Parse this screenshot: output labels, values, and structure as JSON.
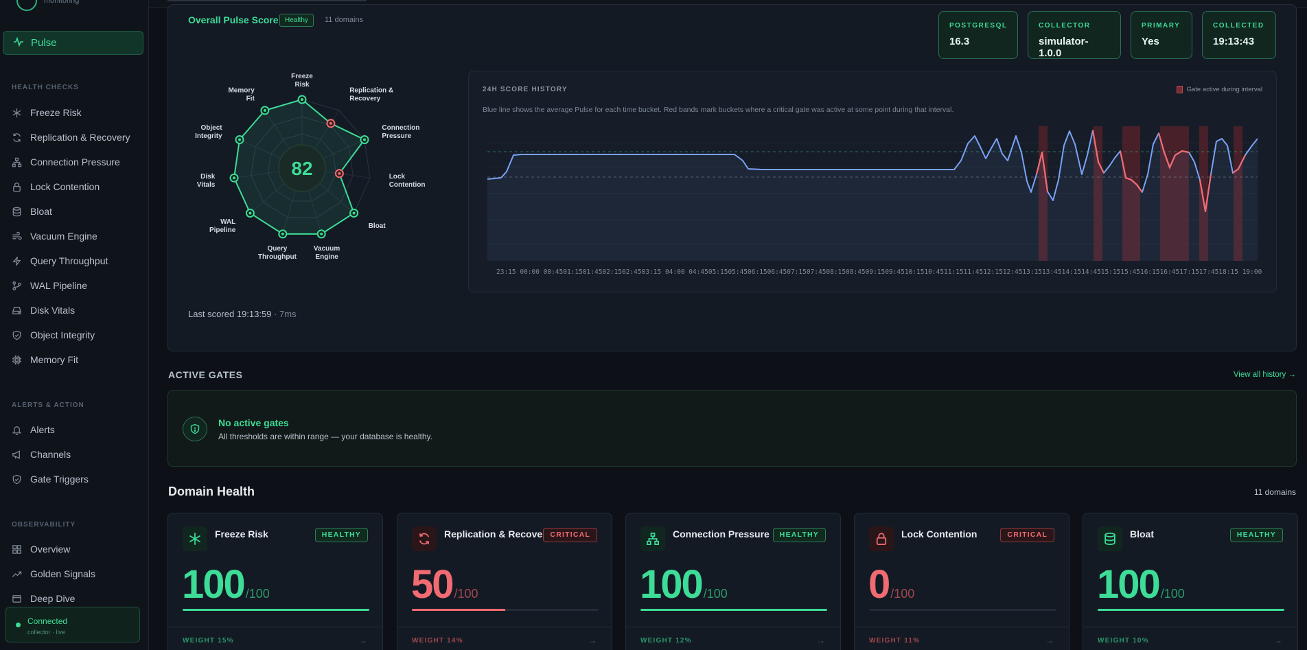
{
  "brand": {
    "subtitle": "monitoring"
  },
  "sidebar": {
    "active": {
      "label": "Pulse",
      "icon": "pulse-icon"
    },
    "sections": [
      {
        "title": "HEALTH CHECKS",
        "items": [
          {
            "label": "Freeze Risk",
            "icon": "snowflake-icon"
          },
          {
            "label": "Replication & Recovery",
            "icon": "refresh-icon"
          },
          {
            "label": "Connection Pressure",
            "icon": "network-icon"
          },
          {
            "label": "Lock Contention",
            "icon": "lock-icon"
          },
          {
            "label": "Bloat",
            "icon": "database-icon"
          },
          {
            "label": "Vacuum Engine",
            "icon": "wind-icon"
          },
          {
            "label": "Query Throughput",
            "icon": "bolt-icon"
          },
          {
            "label": "WAL Pipeline",
            "icon": "branch-icon"
          },
          {
            "label": "Disk Vitals",
            "icon": "disk-icon"
          },
          {
            "label": "Object Integrity",
            "icon": "shield-icon"
          },
          {
            "label": "Memory Fit",
            "icon": "chip-icon"
          }
        ]
      },
      {
        "title": "ALERTS & ACTION",
        "items": [
          {
            "label": "Alerts",
            "icon": "bell-icon"
          },
          {
            "label": "Channels",
            "icon": "megaphone-icon"
          },
          {
            "label": "Gate Triggers",
            "icon": "shield-icon"
          }
        ]
      },
      {
        "title": "OBSERVABILITY",
        "items": [
          {
            "label": "Overview",
            "icon": "grid-icon"
          },
          {
            "label": "Golden Signals",
            "icon": "trend-icon"
          },
          {
            "label": "Deep Dive",
            "icon": "window-icon"
          }
        ]
      }
    ],
    "connection": {
      "title": "Connected",
      "subtitle": "collector · live"
    }
  },
  "pulse": {
    "title": "Overall Pulse Score",
    "status": "Healthy",
    "domains": "11 domains",
    "score": "82",
    "last_scored": "Last scored 19:13:59",
    "duration": "· 7ms",
    "radar_labels": [
      [
        "Freeze",
        "Risk"
      ],
      [
        "Replication &",
        "Recovery"
      ],
      [
        "Connection",
        "Pressure"
      ],
      [
        "Lock",
        "Contention"
      ],
      [
        "Bloat"
      ],
      [
        "Vacuum",
        "Engine"
      ],
      [
        "Query",
        "Throughput"
      ],
      [
        "WAL",
        "Pipeline"
      ],
      [
        "Disk",
        "Vitals"
      ],
      [
        "Object",
        "Integrity"
      ],
      [
        "Memory",
        "Fit"
      ]
    ],
    "radar_values": [
      1.0,
      0.5,
      1.0,
      0.0,
      1.0,
      1.0,
      1.0,
      1.0,
      1.0,
      1.0,
      1.0
    ],
    "radar_critical": [
      false,
      true,
      false,
      true,
      false,
      false,
      false,
      false,
      false,
      false,
      false
    ]
  },
  "meta": [
    {
      "label": "POSTGRESQL",
      "value": "16.3"
    },
    {
      "label": "COLLECTOR",
      "value": "simulator-1.0.0"
    },
    {
      "label": "PRIMARY",
      "value": "Yes"
    },
    {
      "label": "COLLECTED",
      "value": "19:13:43"
    }
  ],
  "history": {
    "title": "24H SCORE HISTORY",
    "description": "Blue line shows the average Pulse for each time bucket. Red bands mark buckets where a critical gate was active at some point during that interval.",
    "legend": "Gate active during interval",
    "ticks": "23:15    00:00    00:4501:1501:4502:1502:4503:15    04:00    04:4505:1505:4506:1506:4507:1507:4508:1508:4509:1509:4510:1510:4511:1511:4512:1512:4513:1513:4514:1514:4515:1515:4516:1516:4517:1517:4518:15    19:00"
  },
  "gates": {
    "heading": "ACTIVE GATES",
    "view_all": "View all history →",
    "title": "No active gates",
    "subtitle": "All thresholds are within range — your database is healthy."
  },
  "domain_health": {
    "heading": "Domain Health",
    "count": "11 domains",
    "cards": [
      {
        "name": "Freeze Risk",
        "status": "HEALTHY",
        "score": "100",
        "denom": "/100",
        "weight": "WEIGHT 15%",
        "fraction": 1.0,
        "critical": false,
        "icon": "snowflake-icon"
      },
      {
        "name": "Replication & Recovery",
        "status": "CRITICAL",
        "score": "50",
        "denom": "/100",
        "weight": "WEIGHT 14%",
        "fraction": 0.5,
        "critical": true,
        "icon": "refresh-icon"
      },
      {
        "name": "Connection Pressure",
        "status": "HEALTHY",
        "score": "100",
        "denom": "/100",
        "weight": "WEIGHT 12%",
        "fraction": 1.0,
        "critical": false,
        "icon": "network-icon"
      },
      {
        "name": "Lock Contention",
        "status": "CRITICAL",
        "score": "0",
        "denom": "/100",
        "weight": "WEIGHT 11%",
        "fraction": 0.0,
        "critical": true,
        "icon": "lock-icon"
      },
      {
        "name": "Bloat",
        "status": "HEALTHY",
        "score": "100",
        "denom": "/100",
        "weight": "WEIGHT 10%",
        "fraction": 1.0,
        "critical": false,
        "icon": "database-icon"
      }
    ]
  },
  "colors": {
    "accent": "#3ddc97",
    "critical": "#f06b72",
    "line": "#7aa2f7",
    "band": "#5a2229"
  }
}
